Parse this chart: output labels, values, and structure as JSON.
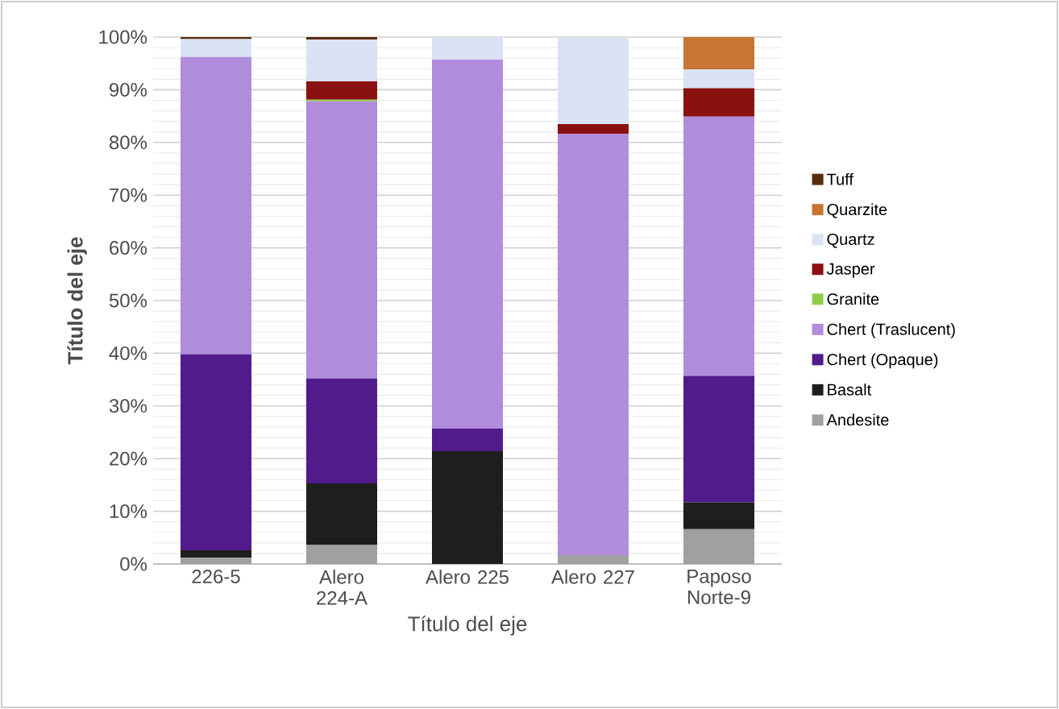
{
  "chart_data": {
    "type": "bar",
    "stacked": true,
    "xlabel": "Título del eje",
    "ylabel": "Título del eje",
    "categories": [
      "226-5",
      "Alero 224-A",
      "Alero 225",
      "Alero 227",
      "Paposo Norte-9"
    ],
    "series": [
      {
        "name": "Andesite",
        "color": "#a0a0a0",
        "values": [
          1.2,
          3.6,
          0,
          1.7,
          6.6
        ]
      },
      {
        "name": "Basalt",
        "color": "#1e1e1e",
        "values": [
          1.4,
          11.7,
          21.4,
          0,
          5.1
        ]
      },
      {
        "name": "Chert (Opaque)",
        "color": "#521b8c",
        "values": [
          37.2,
          19.9,
          4.3,
          0,
          24.0
        ]
      },
      {
        "name": "Chert (Traslucent)",
        "color": "#b08cdc",
        "values": [
          56.4,
          52.6,
          70.0,
          79.9,
          49.2
        ]
      },
      {
        "name": "Granite",
        "color": "#8fce4a",
        "values": [
          0,
          0.3,
          0,
          0,
          0
        ]
      },
      {
        "name": "Jasper",
        "color": "#8b1010",
        "values": [
          0,
          3.5,
          0,
          1.9,
          5.4
        ]
      },
      {
        "name": "Quartz",
        "color": "#dae3f3",
        "values": [
          3.4,
          7.9,
          4.3,
          16.5,
          3.6
        ]
      },
      {
        "name": "Quarzite",
        "color": "#c87432",
        "values": [
          0,
          0,
          0,
          0,
          6.1
        ]
      },
      {
        "name": "Tuff",
        "color": "#5a2d0c",
        "values": [
          0.4,
          0.5,
          0,
          0,
          0
        ]
      }
    ],
    "ylim": [
      0,
      100
    ],
    "yticks": [
      {
        "value": 0,
        "label": "0%"
      },
      {
        "value": 10,
        "label": "10%"
      },
      {
        "value": 20,
        "label": "20%"
      },
      {
        "value": 30,
        "label": "30%"
      },
      {
        "value": 40,
        "label": "40%"
      },
      {
        "value": 50,
        "label": "50%"
      },
      {
        "value": 60,
        "label": "60%"
      },
      {
        "value": 70,
        "label": "70%"
      },
      {
        "value": 80,
        "label": "80%"
      },
      {
        "value": 90,
        "label": "90%"
      },
      {
        "value": 100,
        "label": "100%"
      }
    ],
    "grid": "y",
    "legend": "right"
  }
}
